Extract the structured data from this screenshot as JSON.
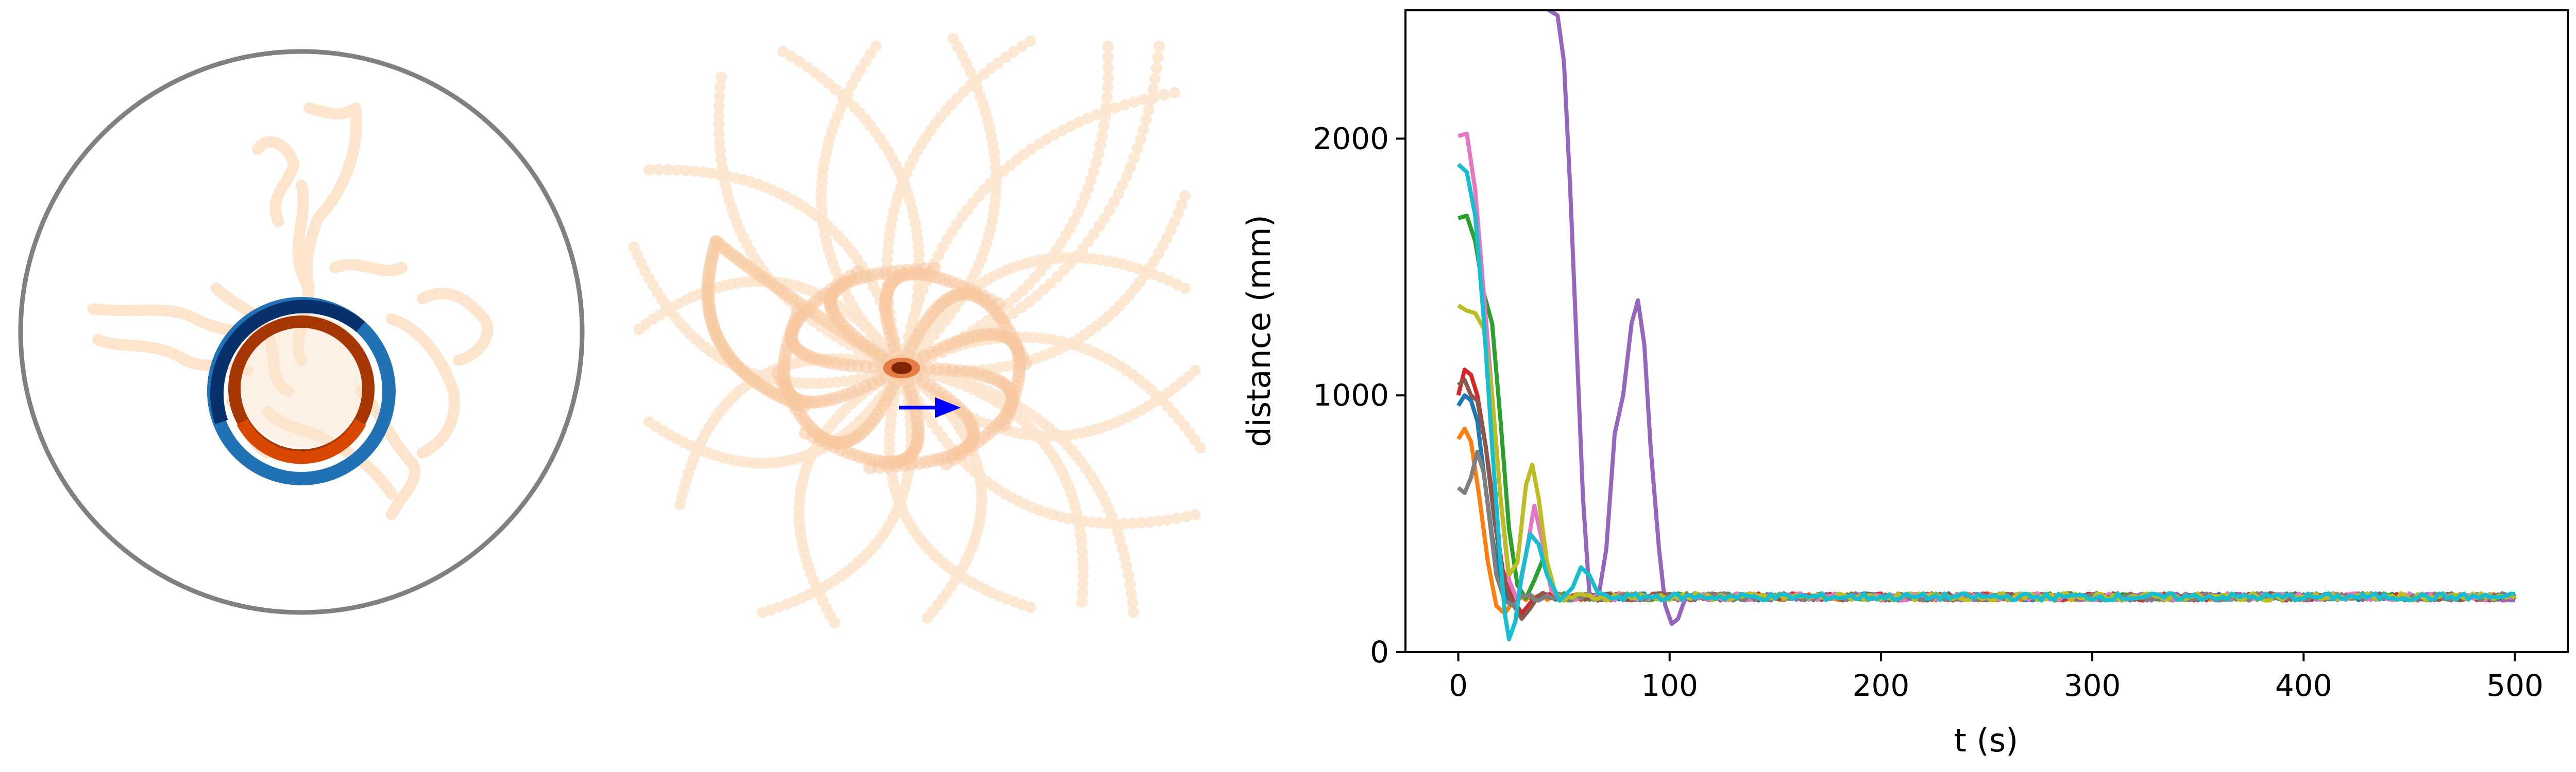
{
  "figure": {
    "colors": {
      "arena_ring": "#808080",
      "trail_light": "#fde6cf",
      "trail_mid": "#f7c9a0",
      "fish_ring_dark": "#7f2704",
      "fish_ring_light": "#e6550d",
      "target_ring_dark": "#08306b",
      "target_ring_light": "#3182bd",
      "heading_arrow": "#0000ff",
      "cluster": "#7f2704"
    },
    "panels": [
      {
        "kind": "arena-top-view",
        "description_icons": [
          "arena-circle",
          "fish-ring",
          "target-ring",
          "trajectory-trails"
        ]
      },
      {
        "kind": "trajectory-field",
        "description_icons": [
          "dotted-trajectories",
          "center-cluster",
          "heading-arrow"
        ]
      }
    ]
  },
  "chart_data": {
    "type": "line",
    "title": "",
    "xlabel": "t (s)",
    "ylabel": "distance (mm)",
    "xlim": [
      -25,
      525
    ],
    "ylim": [
      0,
      2500
    ],
    "xticks": [
      0,
      100,
      200,
      300,
      400,
      500
    ],
    "yticks": [
      0,
      1000,
      2000
    ],
    "grid": false,
    "legend": "none",
    "series": [
      {
        "color": "#1f77b4",
        "points": [
          [
            0,
            960
          ],
          [
            3,
            1000
          ],
          [
            6,
            980
          ],
          [
            9,
            900
          ],
          [
            12,
            700
          ],
          [
            16,
            450
          ],
          [
            20,
            280
          ],
          [
            24,
            200
          ],
          [
            28,
            220
          ],
          [
            35,
            210
          ],
          [
            40,
            225
          ]
        ],
        "steady": 215
      },
      {
        "color": "#ff7f0e",
        "points": [
          [
            0,
            830
          ],
          [
            3,
            870
          ],
          [
            6,
            820
          ],
          [
            10,
            600
          ],
          [
            14,
            350
          ],
          [
            18,
            180
          ],
          [
            22,
            150
          ],
          [
            26,
            200
          ],
          [
            30,
            215
          ]
        ],
        "steady": 215
      },
      {
        "color": "#2ca02c",
        "points": [
          [
            0,
            1690
          ],
          [
            4,
            1700
          ],
          [
            8,
            1600
          ],
          [
            12,
            1400
          ],
          [
            16,
            1280
          ],
          [
            20,
            900
          ],
          [
            24,
            480
          ],
          [
            28,
            260
          ],
          [
            32,
            210
          ],
          [
            36,
            280
          ],
          [
            40,
            360
          ],
          [
            44,
            260
          ],
          [
            48,
            210
          ]
        ],
        "steady": 215
      },
      {
        "color": "#d62728",
        "points": [
          [
            0,
            1000
          ],
          [
            3,
            1100
          ],
          [
            6,
            1080
          ],
          [
            9,
            1000
          ],
          [
            13,
            800
          ],
          [
            17,
            550
          ],
          [
            21,
            320
          ],
          [
            25,
            220
          ],
          [
            30,
            150
          ],
          [
            35,
            200
          ],
          [
            40,
            230
          ]
        ],
        "steady": 215
      },
      {
        "color": "#9467bd",
        "points": [
          [
            40,
            2600
          ],
          [
            43,
            2500
          ],
          [
            47,
            2480
          ],
          [
            50,
            2300
          ],
          [
            53,
            1800
          ],
          [
            56,
            1200
          ],
          [
            59,
            600
          ],
          [
            62,
            230
          ],
          [
            66,
            200
          ],
          [
            70,
            400
          ],
          [
            74,
            850
          ],
          [
            78,
            1000
          ],
          [
            82,
            1280
          ],
          [
            85,
            1370
          ],
          [
            88,
            1200
          ],
          [
            91,
            800
          ],
          [
            95,
            400
          ],
          [
            98,
            180
          ],
          [
            101,
            110
          ],
          [
            104,
            130
          ],
          [
            107,
            200
          ],
          [
            112,
            230
          ],
          [
            118,
            215
          ]
        ],
        "steady": 215
      },
      {
        "color": "#8c564b",
        "points": [
          [
            0,
            1040
          ],
          [
            3,
            1060
          ],
          [
            6,
            1000
          ],
          [
            9,
            980
          ],
          [
            13,
            800
          ],
          [
            17,
            520
          ],
          [
            21,
            300
          ],
          [
            25,
            200
          ],
          [
            30,
            130
          ],
          [
            34,
            170
          ],
          [
            38,
            220
          ]
        ],
        "steady": 215
      },
      {
        "color": "#e377c2",
        "points": [
          [
            0,
            2010
          ],
          [
            4,
            2020
          ],
          [
            8,
            1800
          ],
          [
            12,
            1400
          ],
          [
            16,
            1000
          ],
          [
            20,
            600
          ],
          [
            24,
            280
          ],
          [
            28,
            200
          ],
          [
            32,
            380
          ],
          [
            36,
            570
          ],
          [
            40,
            420
          ],
          [
            44,
            240
          ],
          [
            48,
            210
          ]
        ],
        "steady": 215
      },
      {
        "color": "#7f7f7f",
        "points": [
          [
            0,
            640
          ],
          [
            3,
            620
          ],
          [
            6,
            680
          ],
          [
            9,
            780
          ],
          [
            12,
            700
          ],
          [
            15,
            500
          ],
          [
            18,
            300
          ],
          [
            22,
            200
          ],
          [
            26,
            180
          ],
          [
            30,
            220
          ]
        ],
        "steady": 215
      },
      {
        "color": "#bcbd22",
        "points": [
          [
            0,
            1350
          ],
          [
            4,
            1330
          ],
          [
            8,
            1320
          ],
          [
            12,
            1260
          ],
          [
            16,
            1000
          ],
          [
            20,
            600
          ],
          [
            24,
            300
          ],
          [
            28,
            350
          ],
          [
            32,
            650
          ],
          [
            35,
            730
          ],
          [
            38,
            600
          ],
          [
            42,
            350
          ],
          [
            46,
            230
          ],
          [
            50,
            200
          ]
        ],
        "steady": 215
      },
      {
        "color": "#17becf",
        "points": [
          [
            0,
            1900
          ],
          [
            4,
            1870
          ],
          [
            8,
            1700
          ],
          [
            12,
            1300
          ],
          [
            16,
            800
          ],
          [
            20,
            350
          ],
          [
            22,
            150
          ],
          [
            24,
            50
          ],
          [
            27,
            120
          ],
          [
            30,
            300
          ],
          [
            34,
            460
          ],
          [
            38,
            420
          ],
          [
            42,
            300
          ],
          [
            48,
            200
          ],
          [
            54,
            250
          ],
          [
            58,
            330
          ],
          [
            62,
            300
          ],
          [
            66,
            230
          ]
        ],
        "steady": 215
      }
    ]
  }
}
